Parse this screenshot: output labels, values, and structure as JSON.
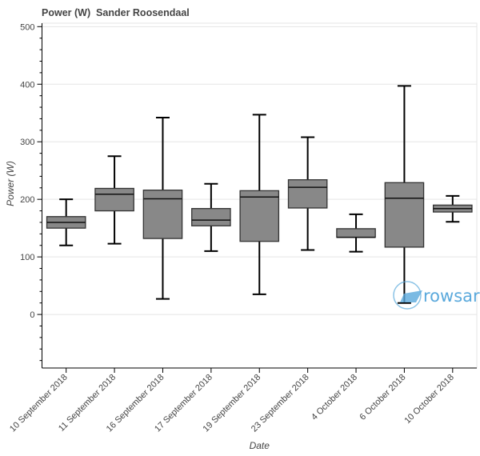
{
  "chart_data": {
    "type": "boxplot",
    "title": "Power (W)  Sander Roosendaal",
    "xlabel": "Date",
    "ylabel": "Power (W)",
    "ylim": [
      -93,
      506
    ],
    "yticks": [
      0,
      100,
      200,
      300,
      400,
      500
    ],
    "grid": true,
    "box_color": "#888888",
    "categories": [
      "10 September 2018",
      "11 September 2018",
      "16 September 2018",
      "17 September 2018",
      "19 September 2018",
      "23 September 2018",
      "4 October 2018",
      "6 October 2018",
      "10 October 2018"
    ],
    "boxes": [
      {
        "whisker_low": 120,
        "q1": 150,
        "median": 160,
        "q3": 170,
        "whisker_high": 200
      },
      {
        "whisker_low": 123,
        "q1": 180,
        "median": 209,
        "q3": 219,
        "whisker_high": 275
      },
      {
        "whisker_low": 27,
        "q1": 132,
        "median": 201,
        "q3": 216,
        "whisker_high": 342
      },
      {
        "whisker_low": 110,
        "q1": 154,
        "median": 164,
        "q3": 184,
        "whisker_high": 227
      },
      {
        "whisker_low": 35,
        "q1": 127,
        "median": 204,
        "q3": 215,
        "whisker_high": 347
      },
      {
        "whisker_low": 112,
        "q1": 185,
        "median": 221,
        "q3": 234,
        "whisker_high": 308
      },
      {
        "whisker_low": 109,
        "q1": 134,
        "median": 134,
        "q3": 149,
        "whisker_high": 174
      },
      {
        "whisker_low": 20,
        "q1": 117,
        "median": 202,
        "q3": 229,
        "whisker_high": 397
      },
      {
        "whisker_low": 161,
        "q1": 178,
        "median": 184,
        "q3": 190,
        "whisker_high": 206
      }
    ]
  },
  "watermark": {
    "text": "rowsar",
    "color": "#5aa9dc"
  }
}
